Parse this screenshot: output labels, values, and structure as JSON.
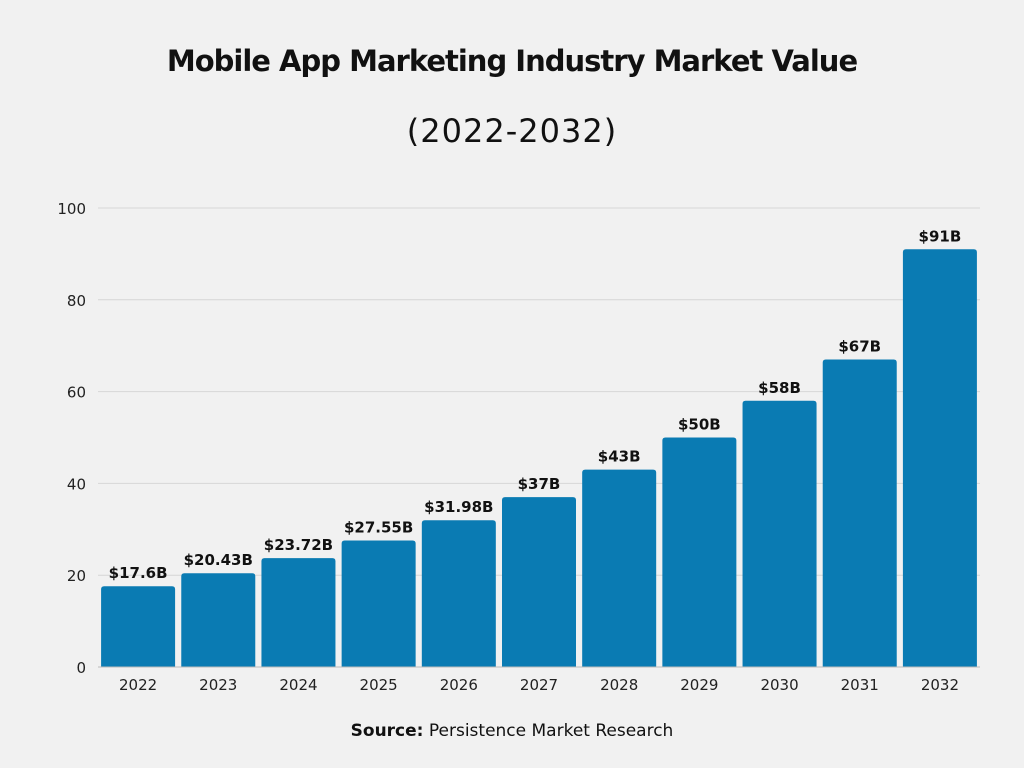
{
  "chart_data": {
    "type": "bar",
    "title": "Mobile App Marketing Industry Market Value",
    "subtitle": "(2022-2032)",
    "categories": [
      "2022",
      "2023",
      "2024",
      "2025",
      "2026",
      "2027",
      "2028",
      "2029",
      "2030",
      "2031",
      "2032"
    ],
    "values": [
      17.6,
      20.43,
      23.72,
      27.55,
      31.98,
      37,
      43,
      50,
      58,
      67,
      91
    ],
    "data_labels": [
      "$17.6B",
      "$20.43B",
      "$23.72B",
      "$27.55B",
      "$31.98B",
      "$37B",
      "$43B",
      "$50B",
      "$58B",
      "$67B",
      "$91B"
    ],
    "ylim": [
      0,
      100
    ],
    "yticks": [
      "0",
      "20",
      "40",
      "60",
      "80",
      "100"
    ],
    "grid": true,
    "xlabel": "",
    "ylabel": "",
    "bar_color": "#0a7bb3"
  },
  "source": {
    "label": "Source:",
    "text": " Persistence Market Research"
  }
}
